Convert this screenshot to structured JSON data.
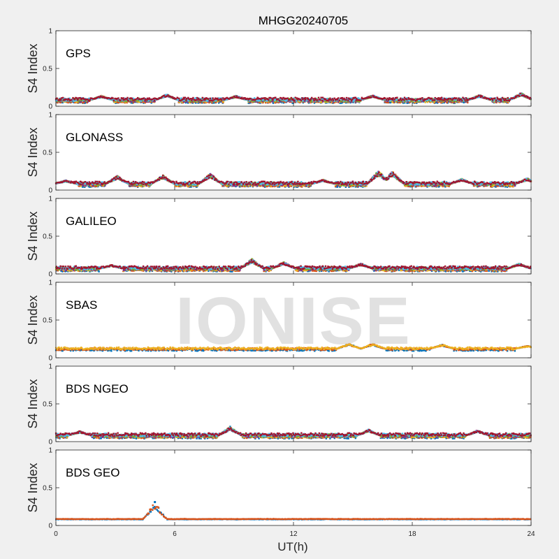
{
  "watermark": "IONISE",
  "chart_data": {
    "type": "scatter",
    "title": "MHGG20240705",
    "xlabel": "UT(h)",
    "ylabel": "S4 Index",
    "xlim": [
      0,
      24
    ],
    "ylim": [
      0,
      1
    ],
    "xticks": [
      0,
      6,
      12,
      18,
      24
    ],
    "yticks": [
      0,
      0.5,
      1
    ],
    "xtick_labels": [
      "0",
      "6",
      "12",
      "18",
      "24"
    ],
    "ytick_labels": [
      "0",
      "0.5",
      "1"
    ],
    "grid": false,
    "panels": [
      {
        "name": "GPS",
        "colors": [
          "#0072BD",
          "#D95319",
          "#EDB120",
          "#7E2F8E",
          "#77AC30",
          "#4DBEEE",
          "#A2142F"
        ],
        "baseline": 0.08,
        "spread": 0.04,
        "events": [
          [
            2.3,
            0.14
          ],
          [
            5.6,
            0.16
          ],
          [
            9.1,
            0.14
          ],
          [
            16.0,
            0.15
          ],
          [
            21.4,
            0.15
          ],
          [
            23.5,
            0.18
          ]
        ]
      },
      {
        "name": "GLONASS",
        "colors": [
          "#0072BD",
          "#D95319",
          "#EDB120",
          "#7E2F8E",
          "#77AC30",
          "#4DBEEE",
          "#A2142F"
        ],
        "baseline": 0.08,
        "spread": 0.04,
        "events": [
          [
            0.5,
            0.13
          ],
          [
            3.1,
            0.19
          ],
          [
            5.4,
            0.2
          ],
          [
            7.8,
            0.22
          ],
          [
            13.5,
            0.14
          ],
          [
            16.3,
            0.26
          ],
          [
            17.0,
            0.25
          ],
          [
            20.5,
            0.15
          ],
          [
            23.8,
            0.16
          ]
        ]
      },
      {
        "name": "GALILEO",
        "colors": [
          "#0072BD",
          "#D95319",
          "#EDB120",
          "#7E2F8E",
          "#77AC30",
          "#4DBEEE",
          "#A2142F"
        ],
        "baseline": 0.07,
        "spread": 0.04,
        "events": [
          [
            2.8,
            0.12
          ],
          [
            9.9,
            0.2
          ],
          [
            11.5,
            0.16
          ],
          [
            15.4,
            0.14
          ],
          [
            23.4,
            0.14
          ]
        ]
      },
      {
        "name": "SBAS",
        "colors": [
          "#0072BD",
          "#D95319",
          "#EDB120"
        ],
        "baseline": 0.12,
        "spread": 0.03,
        "events": [
          [
            14.8,
            0.19
          ],
          [
            16.0,
            0.19
          ],
          [
            19.5,
            0.18
          ],
          [
            23.8,
            0.16
          ]
        ]
      },
      {
        "name": "BDS NGEO",
        "colors": [
          "#0072BD",
          "#D95319",
          "#EDB120",
          "#7E2F8E",
          "#77AC30",
          "#4DBEEE",
          "#A2142F"
        ],
        "baseline": 0.08,
        "spread": 0.04,
        "events": [
          [
            1.2,
            0.14
          ],
          [
            8.8,
            0.2
          ],
          [
            15.8,
            0.16
          ],
          [
            21.3,
            0.15
          ]
        ]
      },
      {
        "name": "BDS GEO",
        "colors": [
          "#0072BD",
          "#D95319"
        ],
        "baseline": 0.085,
        "spread": 0.006,
        "events": [
          [
            5.0,
            0.31
          ]
        ]
      }
    ]
  }
}
